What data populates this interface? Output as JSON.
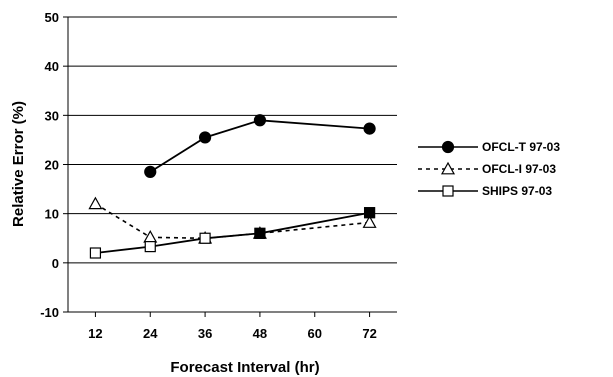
{
  "chart_data": {
    "type": "line",
    "title": "",
    "xlabel": "Forecast Interval (hr)",
    "ylabel": "Relative Error (%)",
    "x": [
      12,
      24,
      36,
      48,
      72
    ],
    "xticks": [
      12,
      24,
      36,
      48,
      60,
      72
    ],
    "yticks": [
      -10,
      0,
      10,
      20,
      30,
      40,
      50
    ],
    "xlim": [
      6,
      78
    ],
    "ylim": [
      -10,
      50
    ],
    "grid": "horizontal",
    "legend_position": "right",
    "series": [
      {
        "name": "OFCL-T 97-03",
        "values": [
          null,
          18.5,
          25.5,
          29,
          27.3
        ],
        "marker": "filled-circle",
        "line": "solid",
        "color": "#000000"
      },
      {
        "name": "OFCL-I 97-03",
        "values": [
          12,
          5.2,
          5,
          6,
          8.2
        ],
        "marker": "open-triangle",
        "line": "dashed",
        "color": "#000000"
      },
      {
        "name": "SHIPS 97-03",
        "values": [
          2,
          3.3,
          5,
          6,
          10.2
        ],
        "marker": "open-square",
        "line": "solid",
        "color": "#000000"
      }
    ]
  }
}
